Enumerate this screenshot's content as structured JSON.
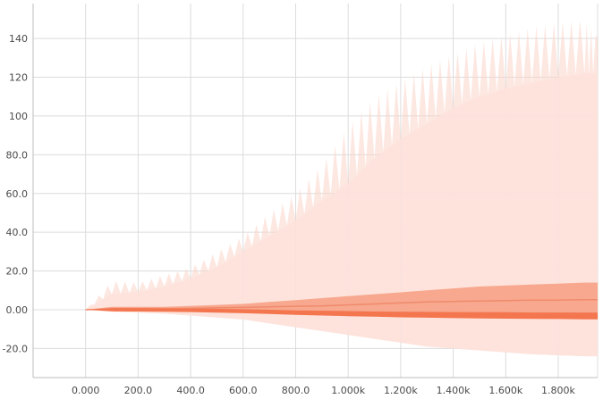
{
  "chart_data": {
    "type": "area",
    "title": "",
    "xlabel": "",
    "ylabel": "",
    "xlim": [
      -200,
      1950
    ],
    "ylim": [
      -35,
      158
    ],
    "grid": true,
    "legend": "none",
    "x_ticks": [
      {
        "value": 0,
        "label": "0.000"
      },
      {
        "value": 200,
        "label": "200.0"
      },
      {
        "value": 400,
        "label": "400.0"
      },
      {
        "value": 600,
        "label": "600.0"
      },
      {
        "value": 800,
        "label": "800.0"
      },
      {
        "value": 1000,
        "label": "1.000k"
      },
      {
        "value": 1200,
        "label": "1.200k"
      },
      {
        "value": 1400,
        "label": "1.400k"
      },
      {
        "value": 1600,
        "label": "1.600k"
      },
      {
        "value": 1800,
        "label": "1.800k"
      }
    ],
    "y_ticks": [
      {
        "value": 140,
        "label": "140"
      },
      {
        "value": 120,
        "label": "120"
      },
      {
        "value": 100,
        "label": "100"
      },
      {
        "value": 80,
        "label": "80.0"
      },
      {
        "value": 60,
        "label": "60.0"
      },
      {
        "value": 40,
        "label": "40.0"
      },
      {
        "value": 20,
        "label": "20.0"
      },
      {
        "value": 0,
        "label": "0.00"
      },
      {
        "value": -20,
        "label": "-20.0"
      }
    ],
    "colors": {
      "outer_band": "#fde2db",
      "outer_spikes": "#fcd3c8",
      "inner_band": "#f7a489",
      "middle_line": "#f08a6c",
      "core_band": "#f4764f"
    },
    "x": [
      0,
      100,
      200,
      300,
      400,
      500,
      600,
      700,
      800,
      900,
      1000,
      1100,
      1200,
      1300,
      1400,
      1500,
      1600,
      1700,
      1800,
      1900,
      1950
    ],
    "series": [
      {
        "role": "outer_max_peaks",
        "values": [
          0,
          15,
          14,
          18,
          22,
          30,
          38,
          50,
          60,
          75,
          95,
          110,
          118,
          126,
          132,
          138,
          142,
          146,
          148,
          150,
          140
        ]
      },
      {
        "role": "outer_upper",
        "values": [
          0,
          8,
          9,
          12,
          16,
          22,
          30,
          38,
          46,
          56,
          65,
          78,
          88,
          96,
          104,
          110,
          114,
          117,
          120,
          122,
          122
        ]
      },
      {
        "role": "outer_lower",
        "values": [
          0,
          -1,
          -1.5,
          -2,
          -3,
          -4,
          -5,
          -7,
          -9,
          -11,
          -13,
          -15,
          -17,
          -19,
          -20,
          -21,
          -22,
          -23,
          -23.5,
          -24,
          -24
        ]
      },
      {
        "role": "inner_upper",
        "values": [
          0,
          1.5,
          1.5,
          1.5,
          2,
          2.5,
          3,
          4,
          5,
          6,
          7,
          8,
          9,
          10,
          11,
          12,
          12.5,
          13,
          13.5,
          14,
          14
        ]
      },
      {
        "role": "inner_lower",
        "values": [
          0,
          -0.5,
          -0.5,
          -0.5,
          -0.8,
          -1,
          -1.2,
          -1.5,
          -1.8,
          -2,
          -2.2,
          -2.5,
          -2.8,
          -3,
          -3.2,
          -3.4,
          -3.5,
          -3.6,
          -3.7,
          -3.8,
          -3.8
        ]
      },
      {
        "role": "middle",
        "values": [
          0,
          0.5,
          0.5,
          0.5,
          0.7,
          1,
          1.2,
          1.5,
          1.8,
          2,
          2.5,
          3,
          3.5,
          4,
          4.3,
          4.5,
          4.7,
          5,
          5,
          5.2,
          5.2
        ]
      },
      {
        "role": "core_upper",
        "values": [
          0,
          0.8,
          0.8,
          0.7,
          0.6,
          0.5,
          0.3,
          0,
          -0.3,
          -0.5,
          -0.7,
          -0.9,
          -1,
          -1.1,
          -1.2,
          -1.3,
          -1.3,
          -1.4,
          -1.4,
          -1.5,
          -1.5
        ]
      },
      {
        "role": "core_lower",
        "values": [
          0,
          -0.8,
          -0.9,
          -1,
          -1.2,
          -1.5,
          -1.8,
          -2.2,
          -2.6,
          -3,
          -3.3,
          -3.6,
          -3.9,
          -4.1,
          -4.3,
          -4.5,
          -4.6,
          -4.7,
          -4.8,
          -4.9,
          -4.9
        ]
      }
    ]
  }
}
